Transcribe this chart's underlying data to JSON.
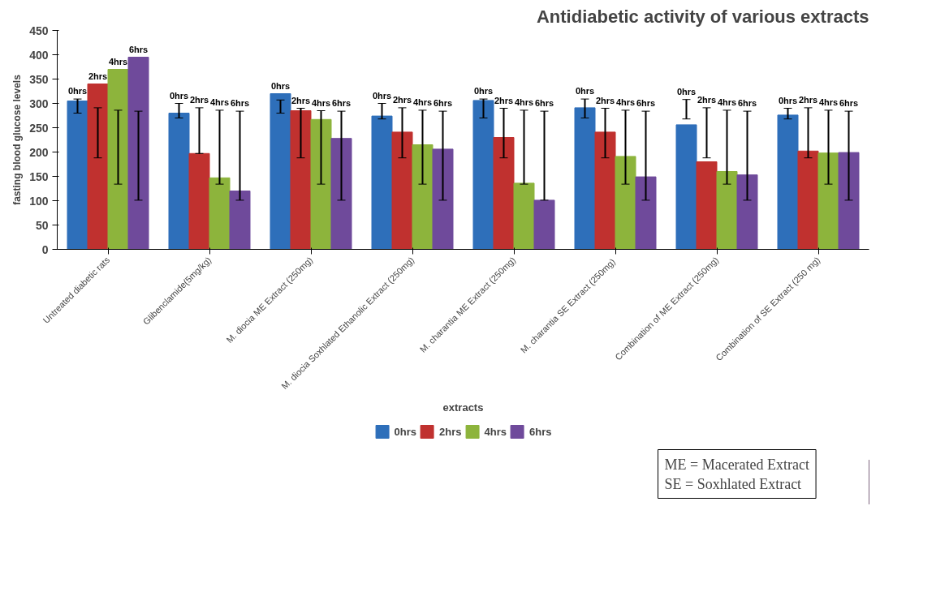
{
  "chart_data": {
    "type": "bar",
    "title": "Antidiabetic activity of various extracts",
    "xlabel": "extracts",
    "ylabel": "fasting blood glucose levels",
    "categories": [
      "Untreated diabetic rats",
      "Glibenclamide(5mg/kg)",
      "M. diocia ME Extract (250mg)",
      "M. diocia Soxhlated Ethanolic Extract (250mg)",
      "M. charantia ME Extract (250mg)",
      "M. charantia SE Extract  (250mg)",
      "Combination of ME Extract (250mg)",
      "Combination of SE Extract (250 mg)"
    ],
    "series": [
      {
        "name": "0hrs",
        "color": "#2e6fba",
        "values": [
          305,
          280,
          320,
          274,
          306,
          291,
          256,
          276
        ],
        "errors": [
          [
            280,
            309
          ],
          [
            270,
            300
          ],
          [
            280,
            307
          ],
          [
            268,
            300
          ],
          [
            270,
            309
          ],
          [
            270,
            309
          ],
          [
            268,
            308
          ],
          [
            268,
            290
          ]
        ]
      },
      {
        "name": "2hrs",
        "color": "#c0312f",
        "values": [
          340,
          197,
          285,
          241,
          230,
          241,
          180,
          202
        ],
        "errors": [
          [
            188,
            291
          ],
          [
            197,
            291
          ],
          [
            188,
            290
          ],
          [
            188,
            291
          ],
          [
            188,
            290
          ],
          [
            188,
            290
          ],
          [
            188,
            291
          ],
          [
            188,
            291
          ]
        ]
      },
      {
        "name": "4hrs",
        "color": "#8db43c",
        "values": [
          370,
          147,
          267,
          215,
          136,
          191,
          160,
          198
        ],
        "errors": [
          [
            134,
            286
          ],
          [
            134,
            286
          ],
          [
            134,
            285
          ],
          [
            134,
            286
          ],
          [
            134,
            286
          ],
          [
            134,
            286
          ],
          [
            134,
            286
          ],
          [
            134,
            286
          ]
        ]
      },
      {
        "name": "6hrs",
        "color": "#6f4a9b",
        "values": [
          395,
          120,
          228,
          206,
          101,
          149,
          153,
          199
        ],
        "errors": [
          [
            101,
            284
          ],
          [
            101,
            284
          ],
          [
            101,
            284
          ],
          [
            101,
            284
          ],
          [
            101,
            284
          ],
          [
            101,
            284
          ],
          [
            101,
            284
          ],
          [
            101,
            284
          ]
        ]
      }
    ],
    "ylim": [
      0,
      450
    ],
    "yticks": [
      0,
      50,
      100,
      150,
      200,
      250,
      300,
      350,
      400,
      450
    ],
    "grid": false,
    "legend": "bottom",
    "annotations": [
      "ME = Macerated Extract",
      "SE = Soxhlated Extract"
    ]
  }
}
